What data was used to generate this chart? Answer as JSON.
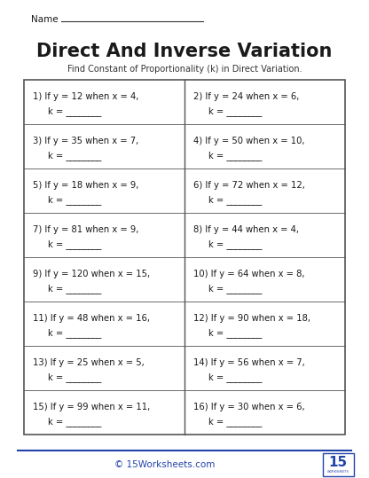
{
  "title": "Direct And Inverse Variation",
  "subtitle": "Find Constant of Proportionality (k) in Direct Variation.",
  "name_label": "Name",
  "background_color": "#ffffff",
  "footer_text": "© 15Worksheets.com",
  "left_problems": [
    "1) If y = 12 when x = 4,",
    "3) If y = 35 when x = 7,",
    "5) If y = 18 when x = 9,",
    "7) If y = 81 when x = 9,",
    "9) If y = 120 when x = 15,",
    "11) If y = 48 when x = 16,",
    "13) If y = 25 when x = 5,",
    "15) If y = 99 when x = 11,"
  ],
  "right_problems": [
    "2) If y = 24 when x = 6,",
    "4) If y = 50 when x = 10,",
    "6) If y = 72 when x = 12,",
    "8) If y = 44 when x = 4,",
    "10) If y = 64 when x = 8,",
    "12) If y = 90 when x = 18,",
    "14) If y = 56 when x = 7,",
    "16) If y = 30 when x = 6,"
  ],
  "answer_label": "k = ________",
  "title_color": "#1a1a1a",
  "subtitle_color": "#333333",
  "problem_color": "#1a1a1a",
  "footer_color": "#2244aa",
  "box_border_color": "#555555",
  "divider_color": "#2244aa",
  "footer_logo_color": "#2244aa",
  "logo_text": "15",
  "logo_sub": "WORKSHEETS"
}
